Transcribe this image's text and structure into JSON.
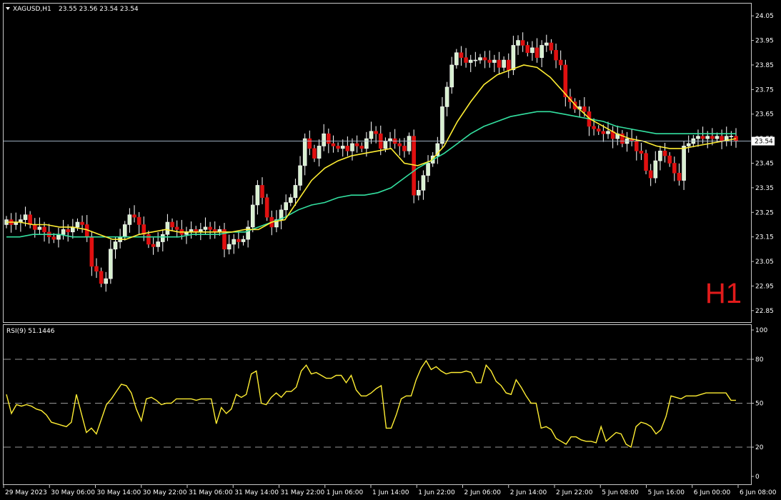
{
  "header": {
    "symbol": "XAGUSD,H1",
    "ohlc": "23.55 23.56 23.54 23.54",
    "timeframe_badge": "H1"
  },
  "colors": {
    "background": "#000000",
    "frame": "#c8c8c8",
    "bull_body": "#ffffff",
    "bull_body_fill": "#d8f0d0",
    "bear_body": "#e01010",
    "wick": "#ffffff",
    "ma_fast": "#ffee33",
    "ma_slow": "#33e0a0",
    "rsi_line": "#ffee33",
    "timeframe_badge": "#e11b1b"
  },
  "chart_data": [
    {
      "type": "candlestick",
      "title": "XAGUSD,H1",
      "subtitle": "23.55 23.56 23.54 23.54",
      "timeframe": "H1",
      "ylim": [
        22.8,
        24.1
      ],
      "y_ticks": [
        "24.05",
        "23.95",
        "23.85",
        "23.75",
        "23.65",
        "23.55",
        "23.45",
        "23.35",
        "23.25",
        "23.15",
        "23.05",
        "22.95",
        "22.85"
      ],
      "current_price": "23.54",
      "x_ticks": [
        "29 May 2023",
        "30 May 06:00",
        "30 May 14:00",
        "30 May 22:00",
        "31 May 06:00",
        "31 May 14:00",
        "31 May 22:00",
        "1 Jun 06:00",
        "1 Jun 14:00",
        "1 Jun 22:00",
        "2 Jun 06:00",
        "2 Jun 14:00",
        "2 Jun 22:00",
        "5 Jun 08:00",
        "5 Jun 16:00",
        "6 Jun 00:00",
        "6 Jun 08:00"
      ],
      "candles_close": [
        23.22,
        23.2,
        23.21,
        23.22,
        23.24,
        23.2,
        23.18,
        23.19,
        23.17,
        23.15,
        23.14,
        23.16,
        23.18,
        23.17,
        23.19,
        23.21,
        23.2,
        23.15,
        23.03,
        23.01,
        22.96,
        22.98,
        23.1,
        23.13,
        23.15,
        23.2,
        23.24,
        23.23,
        23.2,
        23.16,
        23.12,
        23.11,
        23.13,
        23.16,
        23.21,
        23.19,
        23.18,
        23.16,
        23.17,
        23.18,
        23.17,
        23.18,
        23.19,
        23.18,
        23.17,
        23.18,
        23.1,
        23.12,
        23.14,
        23.13,
        23.14,
        23.19,
        23.28,
        23.36,
        23.31,
        23.23,
        23.19,
        23.22,
        23.26,
        23.29,
        23.31,
        23.36,
        23.44,
        23.55,
        23.51,
        23.47,
        23.52,
        23.57,
        23.53,
        23.52,
        23.51,
        23.52,
        23.5,
        23.53,
        23.52,
        23.51,
        23.55,
        23.58,
        23.57,
        23.51,
        23.54,
        23.55,
        23.53,
        23.52,
        23.5,
        23.56,
        23.32,
        23.34,
        23.4,
        23.45,
        23.48,
        23.53,
        23.68,
        23.76,
        23.85,
        23.9,
        23.88,
        23.86,
        23.87,
        23.87,
        23.88,
        23.87,
        23.86,
        23.87,
        23.84,
        23.87,
        23.83,
        23.93,
        23.95,
        23.93,
        23.9,
        23.92,
        23.88,
        23.93,
        23.94,
        23.91,
        23.87,
        23.85,
        23.72,
        23.7,
        23.67,
        23.68,
        23.66,
        23.6,
        23.59,
        23.58,
        23.57,
        23.58,
        23.55,
        23.57,
        23.53,
        23.55,
        23.54,
        23.5,
        23.49,
        23.42,
        23.39,
        23.46,
        23.5,
        23.48,
        23.45,
        23.41,
        23.38,
        23.52,
        23.53,
        23.55,
        23.56,
        23.55,
        23.56,
        23.55,
        23.56,
        23.54,
        23.56,
        23.56,
        23.54
      ],
      "ma_fast": [
        23.21,
        23.21,
        23.2,
        23.2,
        23.19,
        23.19,
        23.18,
        23.16,
        23.14,
        23.14,
        23.16,
        23.17,
        23.18,
        23.17,
        23.17,
        23.17,
        23.17,
        23.17,
        23.18,
        23.18,
        23.21,
        23.22,
        23.3,
        23.38,
        23.43,
        23.46,
        23.48,
        23.49,
        23.5,
        23.51,
        23.45,
        23.44,
        23.46,
        23.52,
        23.62,
        23.7,
        23.77,
        23.81,
        23.83,
        23.85,
        23.84,
        23.8,
        23.74,
        23.68,
        23.63,
        23.6,
        23.57,
        23.55,
        23.54,
        23.52,
        23.51,
        23.51,
        23.52,
        23.53,
        23.54,
        23.55
      ],
      "ma_slow": [
        23.15,
        23.15,
        23.16,
        23.16,
        23.16,
        23.15,
        23.15,
        23.15,
        23.15,
        23.15,
        23.15,
        23.15,
        23.15,
        23.15,
        23.16,
        23.16,
        23.16,
        23.17,
        23.17,
        23.19,
        23.21,
        23.23,
        23.26,
        23.28,
        23.29,
        23.31,
        23.32,
        23.32,
        23.33,
        23.35,
        23.39,
        23.43,
        23.46,
        23.49,
        23.53,
        23.57,
        23.6,
        23.62,
        23.64,
        23.65,
        23.66,
        23.66,
        23.65,
        23.64,
        23.63,
        23.62,
        23.6,
        23.59,
        23.58,
        23.57,
        23.57,
        23.57,
        23.57,
        23.57,
        23.57,
        23.57
      ]
    },
    {
      "type": "line",
      "title": "RSI(9) 51.1446",
      "ylim": [
        0,
        100
      ],
      "y_ticks": [
        "100",
        "80",
        "50",
        "20",
        "0"
      ],
      "levels": [
        80,
        50,
        20
      ],
      "values": [
        56,
        43,
        49,
        48,
        49,
        48,
        46,
        45,
        42,
        37,
        36,
        35,
        34,
        37,
        56,
        43,
        30,
        33,
        29,
        39,
        49,
        53,
        58,
        63,
        62,
        57,
        46,
        38,
        53,
        54,
        52,
        49,
        50,
        50,
        53,
        53,
        53,
        53,
        52,
        53,
        53,
        53,
        36,
        47,
        43,
        46,
        56,
        54,
        56,
        70,
        72,
        50,
        49,
        54,
        57,
        54,
        58,
        58,
        61,
        72,
        76,
        70,
        71,
        69,
        67,
        67,
        69,
        69,
        64,
        69,
        59,
        55,
        55,
        57,
        60,
        62,
        33,
        33,
        42,
        53,
        55,
        55,
        66,
        74,
        79,
        73,
        75,
        72,
        70,
        71,
        71,
        71,
        72,
        71,
        64,
        64,
        76,
        72,
        65,
        62,
        57,
        56,
        66,
        61,
        55,
        50,
        50,
        33,
        34,
        32,
        26,
        24,
        22,
        27,
        27,
        25,
        24,
        24,
        23,
        34,
        24,
        27,
        30,
        29,
        22,
        20,
        34,
        37,
        36,
        34,
        29,
        32,
        41,
        55,
        54,
        53,
        55,
        55,
        55,
        56,
        57,
        57,
        57,
        57,
        57,
        52,
        52
      ]
    }
  ]
}
